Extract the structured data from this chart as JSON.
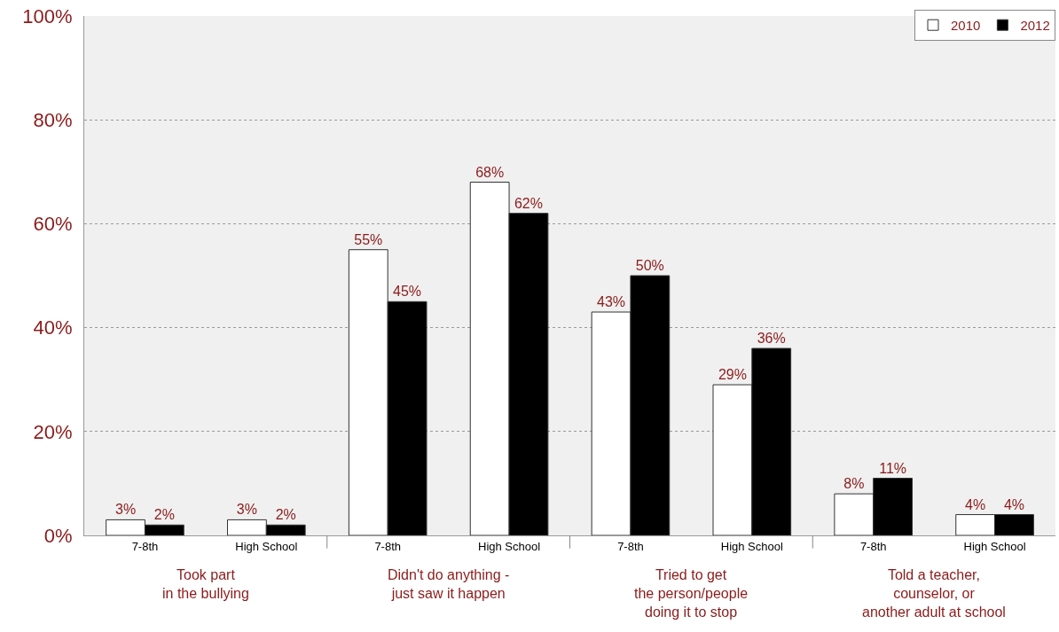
{
  "chart_data": {
    "type": "bar",
    "categories": [
      "7-8th",
      "High School",
      "7-8th",
      "High School",
      "7-8th",
      "High School",
      "7-8th",
      "High School"
    ],
    "series": [
      {
        "name": "2010",
        "color": "#ffffff",
        "values": [
          3,
          3,
          55,
          68,
          43,
          29,
          8,
          4
        ],
        "value_labels": [
          "3%",
          "3%",
          "55%",
          "68%",
          "43%",
          "29%",
          "8%",
          "4%"
        ]
      },
      {
        "name": "2012",
        "color": "#000000",
        "values": [
          2,
          2,
          45,
          62,
          50,
          36,
          11,
          4
        ],
        "value_labels": [
          "2%",
          "2%",
          "45%",
          "62%",
          "50%",
          "36%",
          "11%",
          "4%"
        ]
      }
    ],
    "ylim": [
      0,
      100
    ],
    "yticks": [
      {
        "value": 0,
        "label": "0%"
      },
      {
        "value": 20,
        "label": "20%"
      },
      {
        "value": 40,
        "label": "40%"
      },
      {
        "value": 60,
        "label": "60%"
      },
      {
        "value": 80,
        "label": "80%"
      },
      {
        "value": 100,
        "label": "100%"
      }
    ],
    "annotations": [
      "Took part\nin the bullying",
      "Didn't do anything -\njust saw it happen",
      "Tried to get\nthe person/people\ndoing it to stop",
      "Told a teacher,\ncounselor, or\nanother adult at school"
    ],
    "grid": "y",
    "legend": "top right"
  }
}
